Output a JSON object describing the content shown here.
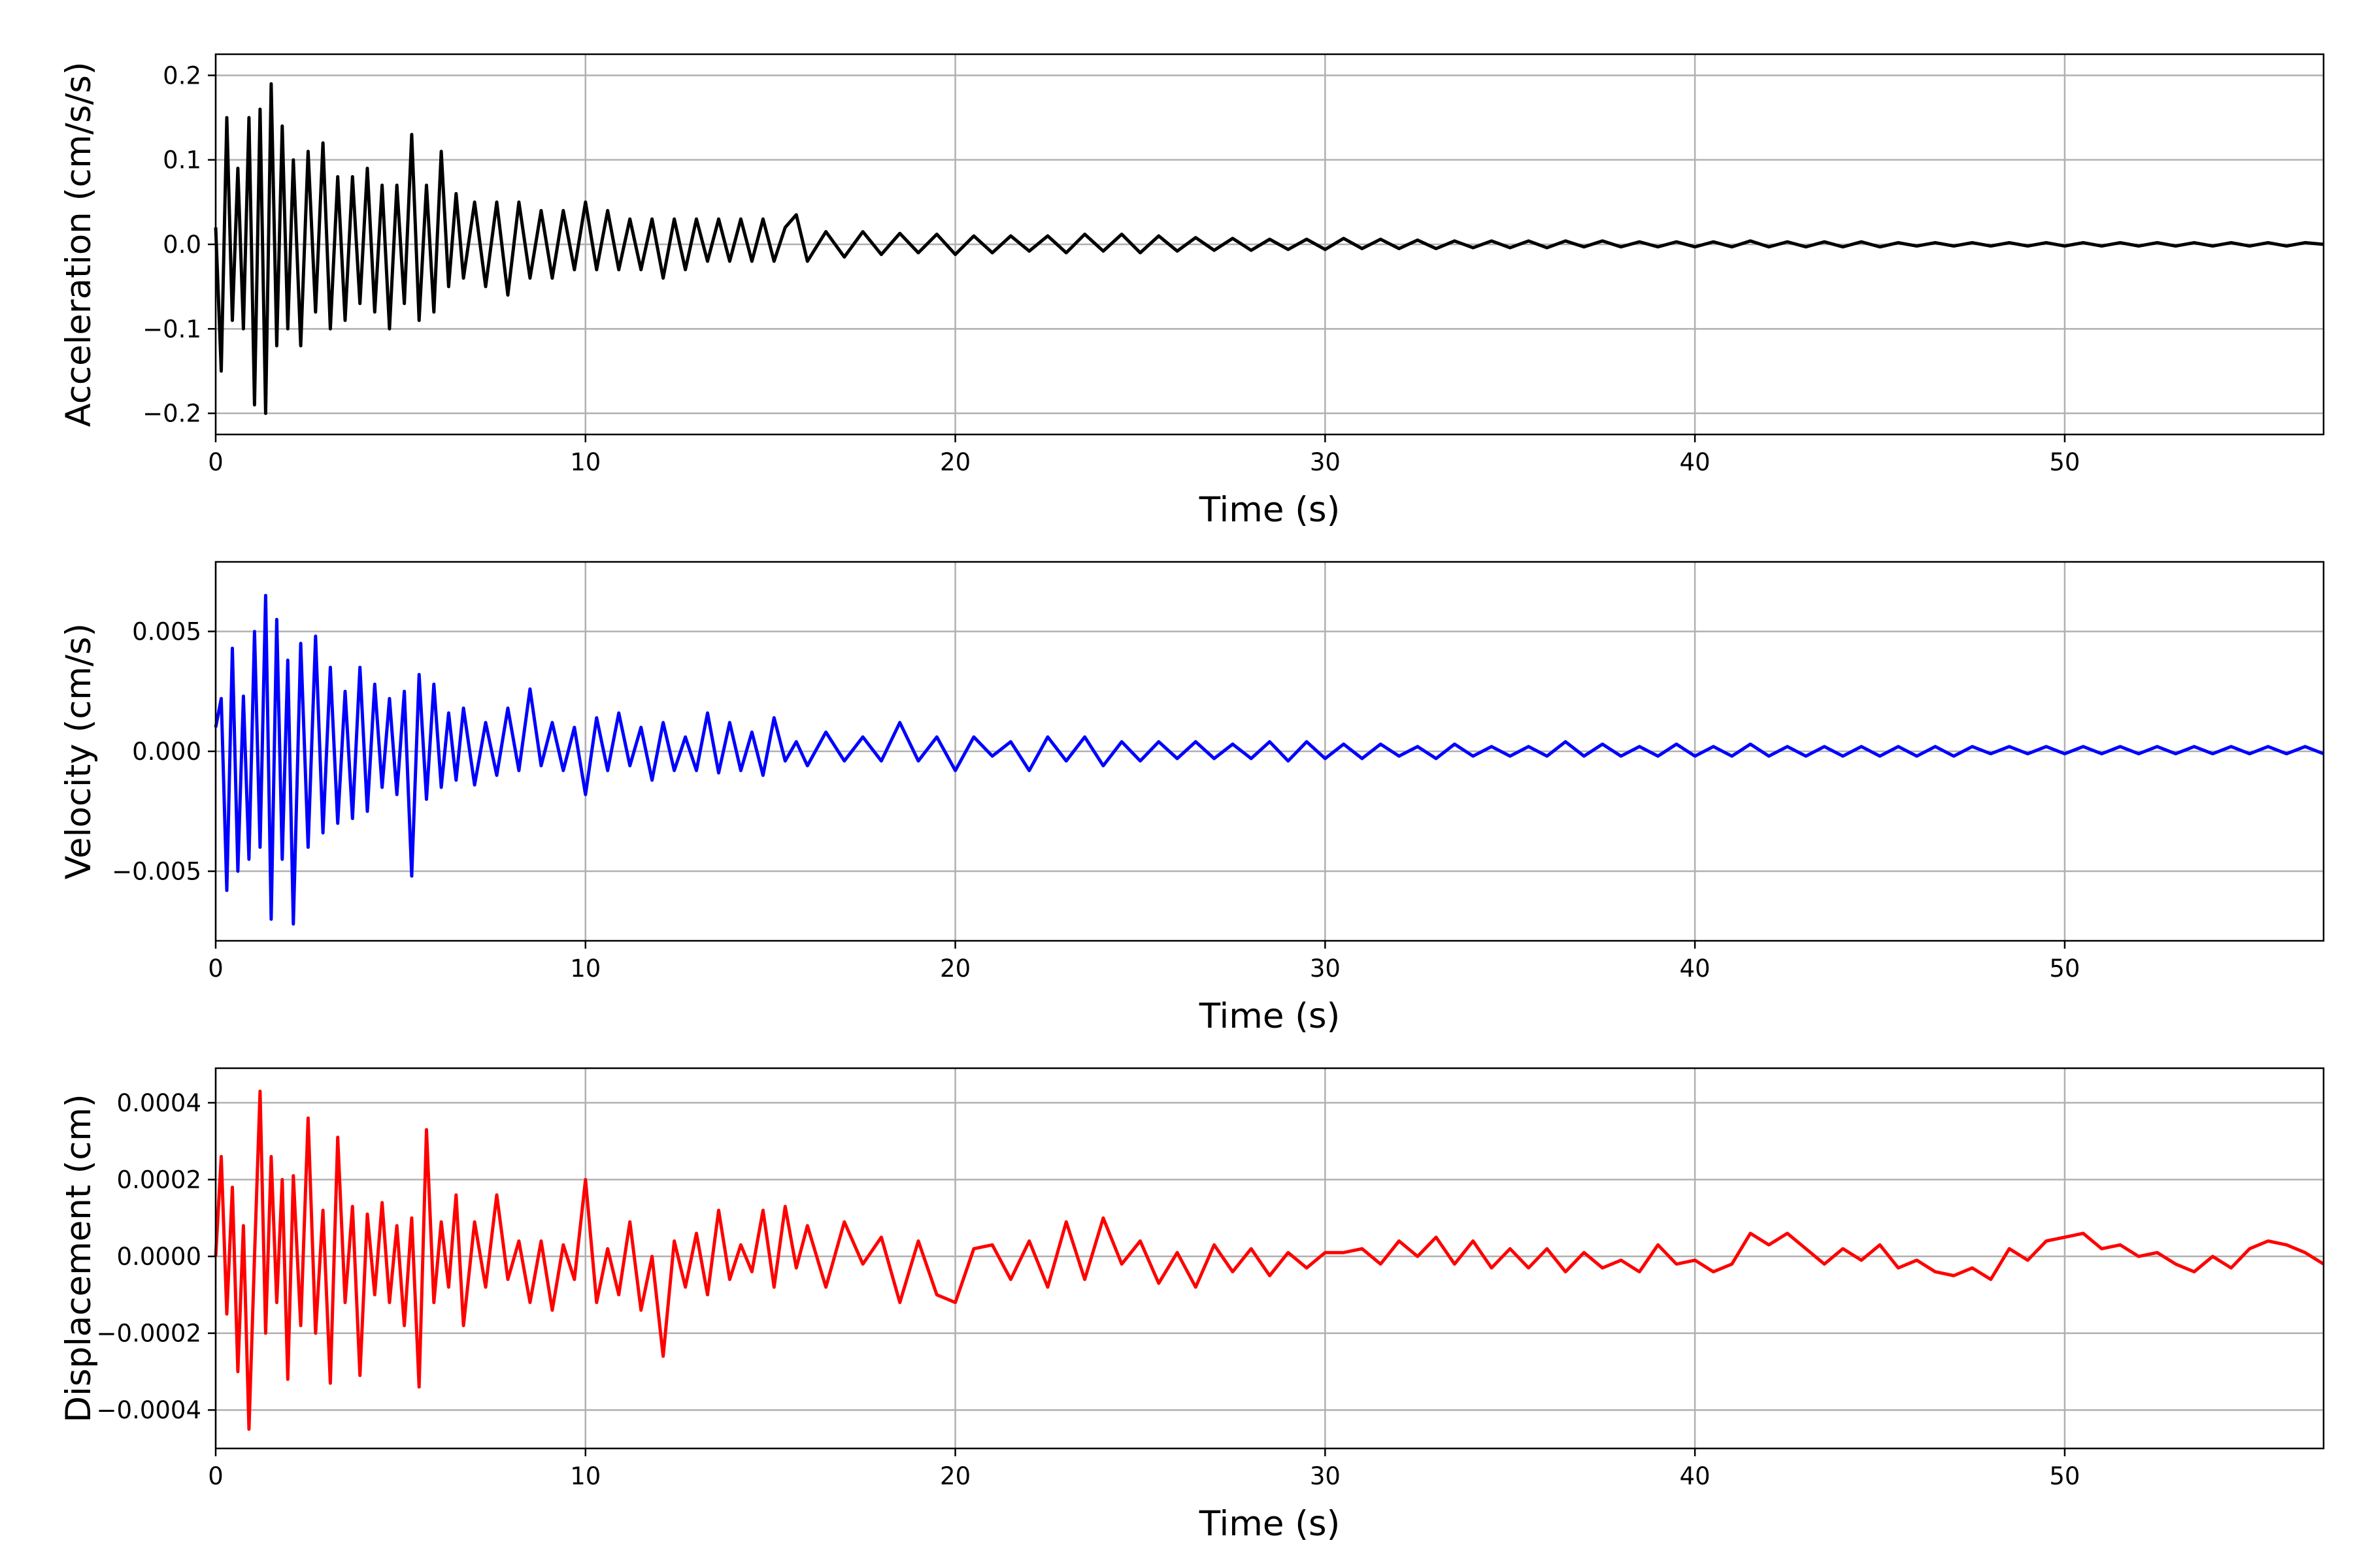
{
  "chart_data": [
    {
      "type": "line",
      "xlabel": "Time (s)",
      "ylabel": "Acceleration (cm/s/s)",
      "xlim": [
        0,
        57
      ],
      "ylim": [
        -0.225,
        0.225
      ],
      "xticks": [
        0,
        10,
        20,
        30,
        40,
        50
      ],
      "xtick_labels": [
        "0",
        "10",
        "20",
        "30",
        "40",
        "50"
      ],
      "yticks": [
        -0.2,
        -0.1,
        0.0,
        0.1,
        0.2
      ],
      "ytick_labels": [
        "−0.2",
        "−0.1",
        "0.0",
        "0.1",
        "0.2"
      ],
      "grid": true,
      "color": "#000000",
      "series": [
        {
          "x": [
            0,
            0.15,
            0.3,
            0.45,
            0.6,
            0.75,
            0.9,
            1.05,
            1.2,
            1.35,
            1.5,
            1.65,
            1.8,
            1.95,
            2.1,
            2.3,
            2.5,
            2.7,
            2.9,
            3.1,
            3.3,
            3.5,
            3.7,
            3.9,
            4.1,
            4.3,
            4.5,
            4.7,
            4.9,
            5.1,
            5.3,
            5.5,
            5.7,
            5.9,
            6.1,
            6.3,
            6.5,
            6.7,
            7.0,
            7.3,
            7.6,
            7.9,
            8.2,
            8.5,
            8.8,
            9.1,
            9.4,
            9.7,
            10.0,
            10.3,
            10.6,
            10.9,
            11.2,
            11.5,
            11.8,
            12.1,
            12.4,
            12.7,
            13.0,
            13.3,
            13.6,
            13.9,
            14.2,
            14.5,
            14.8,
            15.1,
            15.4,
            15.7,
            16.0,
            16.5,
            17.0,
            17.5,
            18.0,
            18.5,
            19.0,
            19.5,
            20.0,
            20.5,
            21.0,
            21.5,
            22.0,
            22.5,
            23.0,
            23.5,
            24.0,
            24.5,
            25.0,
            25.5,
            26.0,
            26.5,
            27.0,
            27.5,
            28.0,
            28.5,
            29.0,
            29.5,
            30.0,
            30.5,
            31.0,
            31.5,
            32.0,
            32.5,
            33.0,
            33.5,
            34.0,
            34.5,
            35.0,
            35.5,
            36.0,
            36.5,
            37.0,
            37.5,
            38.0,
            38.5,
            39.0,
            39.5,
            40.0,
            40.5,
            41.0,
            41.5,
            42.0,
            42.5,
            43.0,
            43.5,
            44.0,
            44.5,
            45.0,
            45.5,
            46.0,
            46.5,
            47.0,
            47.5,
            48.0,
            48.5,
            49.0,
            49.5,
            50.0,
            50.5,
            51.0,
            51.5,
            52.0,
            52.5,
            53.0,
            53.5,
            54.0,
            54.5,
            55.0,
            55.5,
            56.0,
            56.5,
            57.0
          ],
          "y": [
            0.02,
            -0.15,
            0.15,
            -0.09,
            0.09,
            -0.1,
            0.15,
            -0.19,
            0.16,
            -0.2,
            0.19,
            -0.12,
            0.14,
            -0.1,
            0.1,
            -0.12,
            0.11,
            -0.08,
            0.12,
            -0.1,
            0.08,
            -0.09,
            0.08,
            -0.07,
            0.09,
            -0.08,
            0.07,
            -0.1,
            0.07,
            -0.07,
            0.13,
            -0.09,
            0.07,
            -0.08,
            0.11,
            -0.05,
            0.06,
            -0.04,
            0.05,
            -0.05,
            0.05,
            -0.06,
            0.05,
            -0.04,
            0.04,
            -0.04,
            0.04,
            -0.03,
            0.05,
            -0.03,
            0.04,
            -0.03,
            0.03,
            -0.03,
            0.03,
            -0.04,
            0.03,
            -0.03,
            0.03,
            -0.02,
            0.03,
            -0.02,
            0.03,
            -0.02,
            0.03,
            -0.02,
            0.02,
            0.035,
            -0.02,
            0.015,
            -0.015,
            0.015,
            -0.012,
            0.013,
            -0.01,
            0.012,
            -0.012,
            0.01,
            -0.01,
            0.01,
            -0.008,
            0.01,
            -0.01,
            0.012,
            -0.008,
            0.012,
            -0.01,
            0.01,
            -0.008,
            0.008,
            -0.007,
            0.007,
            -0.007,
            0.006,
            -0.006,
            0.006,
            -0.006,
            0.007,
            -0.005,
            0.006,
            -0.005,
            0.005,
            -0.005,
            0.004,
            -0.004,
            0.004,
            -0.004,
            0.004,
            -0.004,
            0.004,
            -0.003,
            0.004,
            -0.003,
            0.003,
            -0.003,
            0.003,
            -0.003,
            0.003,
            -0.003,
            0.004,
            -0.003,
            0.003,
            -0.003,
            0.003,
            -0.003,
            0.003,
            -0.003,
            0.002,
            -0.002,
            0.002,
            -0.002,
            0.002,
            -0.002,
            0.002,
            -0.002,
            0.002,
            -0.002,
            0.002,
            -0.002,
            0.002,
            -0.002,
            0.002,
            -0.002,
            0.002,
            -0.002,
            0.002,
            -0.002,
            0.002,
            -0.002,
            0.002,
            0.0
          ]
        }
      ]
    },
    {
      "type": "line",
      "xlabel": "Time (s)",
      "ylabel": "Velocity (cm/s)",
      "xlim": [
        0,
        57
      ],
      "ylim": [
        -0.0079,
        0.0079
      ],
      "xticks": [
        0,
        10,
        20,
        30,
        40,
        50
      ],
      "xtick_labels": [
        "0",
        "10",
        "20",
        "30",
        "40",
        "50"
      ],
      "yticks": [
        -0.005,
        0.0,
        0.005
      ],
      "ytick_labels": [
        "−0.005",
        "0.000",
        "0.005"
      ],
      "grid": true,
      "color": "#0000ff",
      "series": [
        {
          "x": [
            0,
            0.15,
            0.3,
            0.45,
            0.6,
            0.75,
            0.9,
            1.05,
            1.2,
            1.35,
            1.5,
            1.65,
            1.8,
            1.95,
            2.1,
            2.3,
            2.5,
            2.7,
            2.9,
            3.1,
            3.3,
            3.5,
            3.7,
            3.9,
            4.1,
            4.3,
            4.5,
            4.7,
            4.9,
            5.1,
            5.3,
            5.5,
            5.7,
            5.9,
            6.1,
            6.3,
            6.5,
            6.7,
            7.0,
            7.3,
            7.6,
            7.9,
            8.2,
            8.5,
            8.8,
            9.1,
            9.4,
            9.7,
            10.0,
            10.3,
            10.6,
            10.9,
            11.2,
            11.5,
            11.8,
            12.1,
            12.4,
            12.7,
            13.0,
            13.3,
            13.6,
            13.9,
            14.2,
            14.5,
            14.8,
            15.1,
            15.4,
            15.7,
            16.0,
            16.5,
            17.0,
            17.5,
            18.0,
            18.5,
            19.0,
            19.5,
            20.0,
            20.5,
            21.0,
            21.5,
            22.0,
            22.5,
            23.0,
            23.5,
            24.0,
            24.5,
            25.0,
            25.5,
            26.0,
            26.5,
            27.0,
            27.5,
            28.0,
            28.5,
            29.0,
            29.5,
            30.0,
            30.5,
            31.0,
            31.5,
            32.0,
            32.5,
            33.0,
            33.5,
            34.0,
            34.5,
            35.0,
            35.5,
            36.0,
            36.5,
            37.0,
            37.5,
            38.0,
            38.5,
            39.0,
            39.5,
            40.0,
            40.5,
            41.0,
            41.5,
            42.0,
            42.5,
            43.0,
            43.5,
            44.0,
            44.5,
            45.0,
            45.5,
            46.0,
            46.5,
            47.0,
            47.5,
            48.0,
            48.5,
            49.0,
            49.5,
            50.0,
            50.5,
            51.0,
            51.5,
            52.0,
            52.5,
            53.0,
            53.5,
            54.0,
            54.5,
            55.0,
            55.5,
            56.0,
            56.5,
            57.0
          ],
          "y": [
            0.001,
            0.0022,
            -0.0058,
            0.0043,
            -0.005,
            0.0023,
            -0.0045,
            0.005,
            -0.004,
            0.0065,
            -0.007,
            0.0055,
            -0.0045,
            0.0038,
            -0.0072,
            0.0045,
            -0.004,
            0.0048,
            -0.0034,
            0.0035,
            -0.003,
            0.0025,
            -0.0028,
            0.0035,
            -0.0025,
            0.0028,
            -0.0015,
            0.0022,
            -0.0018,
            0.0025,
            -0.0052,
            0.0032,
            -0.002,
            0.0028,
            -0.0015,
            0.0016,
            -0.0012,
            0.0018,
            -0.0014,
            0.0012,
            -0.001,
            0.0018,
            -0.0008,
            0.0026,
            -0.0006,
            0.0012,
            -0.0008,
            0.001,
            -0.0018,
            0.0014,
            -0.0008,
            0.0016,
            -0.0006,
            0.001,
            -0.0012,
            0.0012,
            -0.0008,
            0.0006,
            -0.0008,
            0.0016,
            -0.0009,
            0.0012,
            -0.0008,
            0.0008,
            -0.001,
            0.0014,
            -0.0004,
            0.0004,
            -0.0006,
            0.0008,
            -0.0004,
            0.0006,
            -0.0004,
            0.0012,
            -0.0004,
            0.0006,
            -0.0008,
            0.0006,
            -0.0002,
            0.0004,
            -0.0008,
            0.0006,
            -0.0004,
            0.0006,
            -0.0006,
            0.0004,
            -0.0004,
            0.0004,
            -0.0003,
            0.0004,
            -0.0003,
            0.0003,
            -0.0003,
            0.0004,
            -0.0004,
            0.0004,
            -0.0003,
            0.0003,
            -0.0003,
            0.0003,
            -0.0002,
            0.0002,
            -0.0003,
            0.0003,
            -0.0002,
            0.0002,
            -0.0002,
            0.0002,
            -0.0002,
            0.0004,
            -0.0002,
            0.0003,
            -0.0002,
            0.0002,
            -0.0002,
            0.0003,
            -0.0002,
            0.0002,
            -0.0002,
            0.0003,
            -0.0002,
            0.0002,
            -0.0002,
            0.0002,
            -0.0002,
            0.0002,
            -0.0002,
            0.0002,
            -0.0002,
            0.0002,
            -0.0002,
            0.0002,
            -0.0001,
            0.0002,
            -0.0001,
            0.0002,
            -0.0001,
            0.0002,
            -0.0001,
            0.0002,
            -0.0001,
            0.0002,
            -0.0001,
            0.0002,
            -0.0001,
            0.0002,
            -0.0001,
            0.0002,
            -0.0001,
            0.0002,
            -0.0001
          ]
        }
      ]
    },
    {
      "type": "line",
      "xlabel": "Time (s)",
      "ylabel": "Displacement (cm)",
      "xlim": [
        0,
        57
      ],
      "ylim": [
        -0.0005,
        0.00049
      ],
      "xticks": [
        0,
        10,
        20,
        30,
        40,
        50
      ],
      "xtick_labels": [
        "0",
        "10",
        "20",
        "30",
        "40",
        "50"
      ],
      "yticks": [
        -0.0004,
        -0.0002,
        0.0,
        0.0002,
        0.0004
      ],
      "ytick_labels": [
        "−0.0004",
        "−0.0002",
        "0.0000",
        "0.0002",
        "0.0004"
      ],
      "grid": true,
      "color": "#ff0000",
      "series": [
        {
          "x": [
            0,
            0.15,
            0.3,
            0.45,
            0.6,
            0.75,
            0.9,
            1.05,
            1.2,
            1.35,
            1.5,
            1.65,
            1.8,
            1.95,
            2.1,
            2.3,
            2.5,
            2.7,
            2.9,
            3.1,
            3.3,
            3.5,
            3.7,
            3.9,
            4.1,
            4.3,
            4.5,
            4.7,
            4.9,
            5.1,
            5.3,
            5.5,
            5.7,
            5.9,
            6.1,
            6.3,
            6.5,
            6.7,
            7.0,
            7.3,
            7.6,
            7.9,
            8.2,
            8.5,
            8.8,
            9.1,
            9.4,
            9.7,
            10.0,
            10.3,
            10.6,
            10.9,
            11.2,
            11.5,
            11.8,
            12.1,
            12.4,
            12.7,
            13.0,
            13.3,
            13.6,
            13.9,
            14.2,
            14.5,
            14.8,
            15.1,
            15.4,
            15.7,
            16.0,
            16.5,
            17.0,
            17.5,
            18.0,
            18.5,
            19.0,
            19.5,
            20.0,
            20.5,
            21.0,
            21.5,
            22.0,
            22.5,
            23.0,
            23.5,
            24.0,
            24.5,
            25.0,
            25.5,
            26.0,
            26.5,
            27.0,
            27.5,
            28.0,
            28.5,
            29.0,
            29.5,
            30.0,
            30.5,
            31.0,
            31.5,
            32.0,
            32.5,
            33.0,
            33.5,
            34.0,
            34.5,
            35.0,
            35.5,
            36.0,
            36.5,
            37.0,
            37.5,
            38.0,
            38.5,
            39.0,
            39.5,
            40.0,
            40.5,
            41.0,
            41.5,
            42.0,
            42.5,
            43.0,
            43.5,
            44.0,
            44.5,
            45.0,
            45.5,
            46.0,
            46.5,
            47.0,
            47.5,
            48.0,
            48.5,
            49.0,
            49.5,
            50.0,
            50.5,
            51.0,
            51.5,
            52.0,
            52.5,
            53.0,
            53.5,
            54.0,
            54.5,
            55.0,
            55.5,
            56.0,
            56.5,
            57.0
          ],
          "y": [
            0.0,
            0.00026,
            -0.00015,
            0.00018,
            -0.0003,
            8e-05,
            -0.00045,
            0.0,
            0.00043,
            -0.0002,
            0.00026,
            -0.00012,
            0.0002,
            -0.00032,
            0.00021,
            -0.00018,
            0.00036,
            -0.0002,
            0.00012,
            -0.00033,
            0.00031,
            -0.00012,
            0.00013,
            -0.00031,
            0.00011,
            -0.0001,
            0.00014,
            -0.00012,
            8e-05,
            -0.00018,
            0.0001,
            -0.00034,
            0.00033,
            -0.00012,
            9e-05,
            -8e-05,
            0.00016,
            -0.00018,
            9e-05,
            -8e-05,
            0.00016,
            -6e-05,
            4e-05,
            -0.00012,
            4e-05,
            -0.00014,
            3e-05,
            -6e-05,
            0.0002,
            -0.00012,
            2e-05,
            -0.0001,
            9e-05,
            -0.00014,
            0.0,
            -0.00026,
            4e-05,
            -8e-05,
            6e-05,
            -0.0001,
            0.00012,
            -6e-05,
            3e-05,
            -4e-05,
            0.00012,
            -8e-05,
            0.00013,
            -3e-05,
            8e-05,
            -8e-05,
            9e-05,
            -2e-05,
            5e-05,
            -0.00012,
            4e-05,
            -0.0001,
            -0.00012,
            2e-05,
            3e-05,
            -6e-05,
            4e-05,
            -8e-05,
            9e-05,
            -6e-05,
            0.0001,
            -2e-05,
            4e-05,
            -7e-05,
            1e-05,
            -8e-05,
            3e-05,
            -4e-05,
            2e-05,
            -5e-05,
            1e-05,
            -3e-05,
            1e-05,
            1e-05,
            2e-05,
            -2e-05,
            4e-05,
            0.0,
            5e-05,
            -2e-05,
            4e-05,
            -3e-05,
            2e-05,
            -3e-05,
            2e-05,
            -4e-05,
            1e-05,
            -3e-05,
            -1e-05,
            -4e-05,
            3e-05,
            -2e-05,
            -1e-05,
            -4e-05,
            -2e-05,
            6e-05,
            3e-05,
            6e-05,
            2e-05,
            -2e-05,
            2e-05,
            -1e-05,
            3e-05,
            -3e-05,
            -1e-05,
            -4e-05,
            -5e-05,
            -3e-05,
            -6e-05,
            2e-05,
            -1e-05,
            4e-05,
            5e-05,
            6e-05,
            2e-05,
            3e-05,
            0.0,
            1e-05,
            -2e-05,
            -4e-05,
            0.0,
            -3e-05,
            2e-05,
            4e-05,
            3e-05,
            1e-05,
            -2e-05
          ]
        }
      ]
    }
  ]
}
